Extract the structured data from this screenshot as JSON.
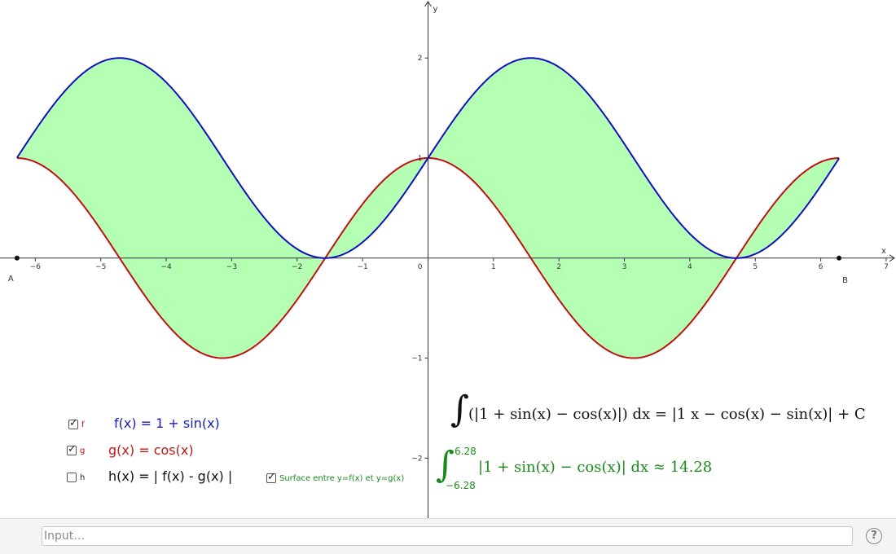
{
  "graph": {
    "x_ticks": [
      -6,
      -5,
      -4,
      -3,
      -2,
      -1,
      1,
      2,
      3,
      4,
      5,
      6,
      7
    ],
    "y_ticks": [
      -2,
      -1,
      1,
      2
    ],
    "origin_label": "0",
    "x_axis_label": "x",
    "y_axis_label": "y",
    "xlim": [
      -6.54,
      7.15
    ],
    "ylim": [
      -2.6,
      2.58
    ],
    "point_A": {
      "label": "A",
      "x": -6.28,
      "y": 0
    },
    "point_B": {
      "label": "B",
      "x": 6.28,
      "y": 0
    },
    "colors": {
      "f": "#1010c0",
      "g": "#c01010",
      "fill": "#b5ffb5"
    }
  },
  "functions": [
    {
      "name": "f",
      "label": "f(x) = 1 + sin(x)",
      "checked": true,
      "color": "#1a1ab8"
    },
    {
      "name": "g",
      "label": "g(x) = cos(x)",
      "checked": true,
      "color": "#c01818"
    },
    {
      "name": "h",
      "label": "h(x) = | f(x) - g(x) |",
      "checked": false,
      "color": "#000000"
    }
  ],
  "surface_checkbox": {
    "label": "Surface entre y=f(x) et y=g(x)",
    "checked": true
  },
  "antiderivative": {
    "lhs": "(|1 + sin(x) − cos(x)|) dx = |1 x − cos(x) − sin(x)| + C"
  },
  "definite_integral": {
    "upper": "6.28",
    "lower": "−6.28",
    "expression": "|1 + sin(x) − cos(x)| dx ≈ 14.28"
  },
  "input_bar": {
    "placeholder": "Input…"
  },
  "help_label": "?"
}
